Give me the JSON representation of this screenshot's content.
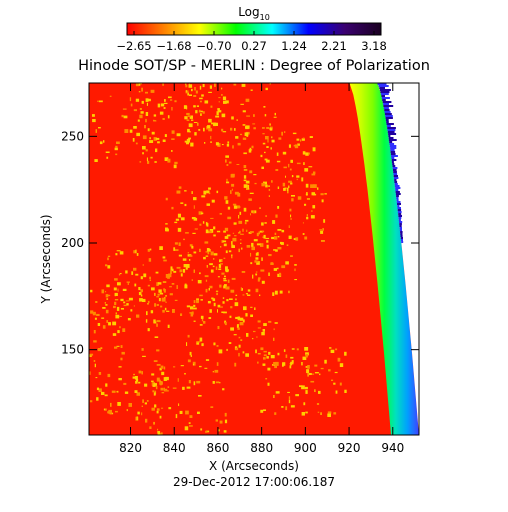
{
  "chart_data": {
    "type": "heatmap",
    "title": "Hinode SOT/SP - MERLIN : Degree of Polarization",
    "xlabel": "X (Arcseconds)",
    "ylabel": "Y (Arcseconds)",
    "timestamp": "29-Dec-2012 17:00:06.187",
    "colorbar": {
      "label_prefix": "Log",
      "label_subscript": "10",
      "ticks": [
        "-2.65",
        "-1.68",
        "-0.70",
        "0.27",
        "1.24",
        "2.21",
        "3.18"
      ],
      "range": [
        -2.65,
        3.18
      ],
      "colors": [
        "#ff0000",
        "#ff7f00",
        "#ffff00",
        "#00ff00",
        "#00ffff",
        "#0000ff",
        "#3a0070",
        "#1a0020"
      ]
    },
    "xlim": [
      801,
      952
    ],
    "ylim": [
      110,
      275
    ],
    "xticks": [
      {
        "v": 820,
        "t": "820"
      },
      {
        "v": 840,
        "t": "840"
      },
      {
        "v": 860,
        "t": "860"
      },
      {
        "v": 880,
        "t": "880"
      },
      {
        "v": 900,
        "t": "900"
      },
      {
        "v": 920,
        "t": "920"
      },
      {
        "v": 940,
        "t": "940"
      }
    ],
    "yticks": [
      {
        "v": 150,
        "t": "150"
      },
      {
        "v": 200,
        "t": "200"
      },
      {
        "v": 250,
        "t": "250"
      }
    ],
    "limb": {
      "description_values": "solar limb edge in data units",
      "top": [
        933,
        275
      ],
      "bottom": [
        952,
        110
      ],
      "band_colors": [
        "#ffff00",
        "#c8ff00",
        "#7fff00",
        "#00ff40",
        "#00e0c0",
        "#00a0ff",
        "#4040ff"
      ]
    },
    "background_color": "#ff1a00",
    "speckle_color": "#ffd000",
    "off_disk_color": "#ffffff"
  }
}
